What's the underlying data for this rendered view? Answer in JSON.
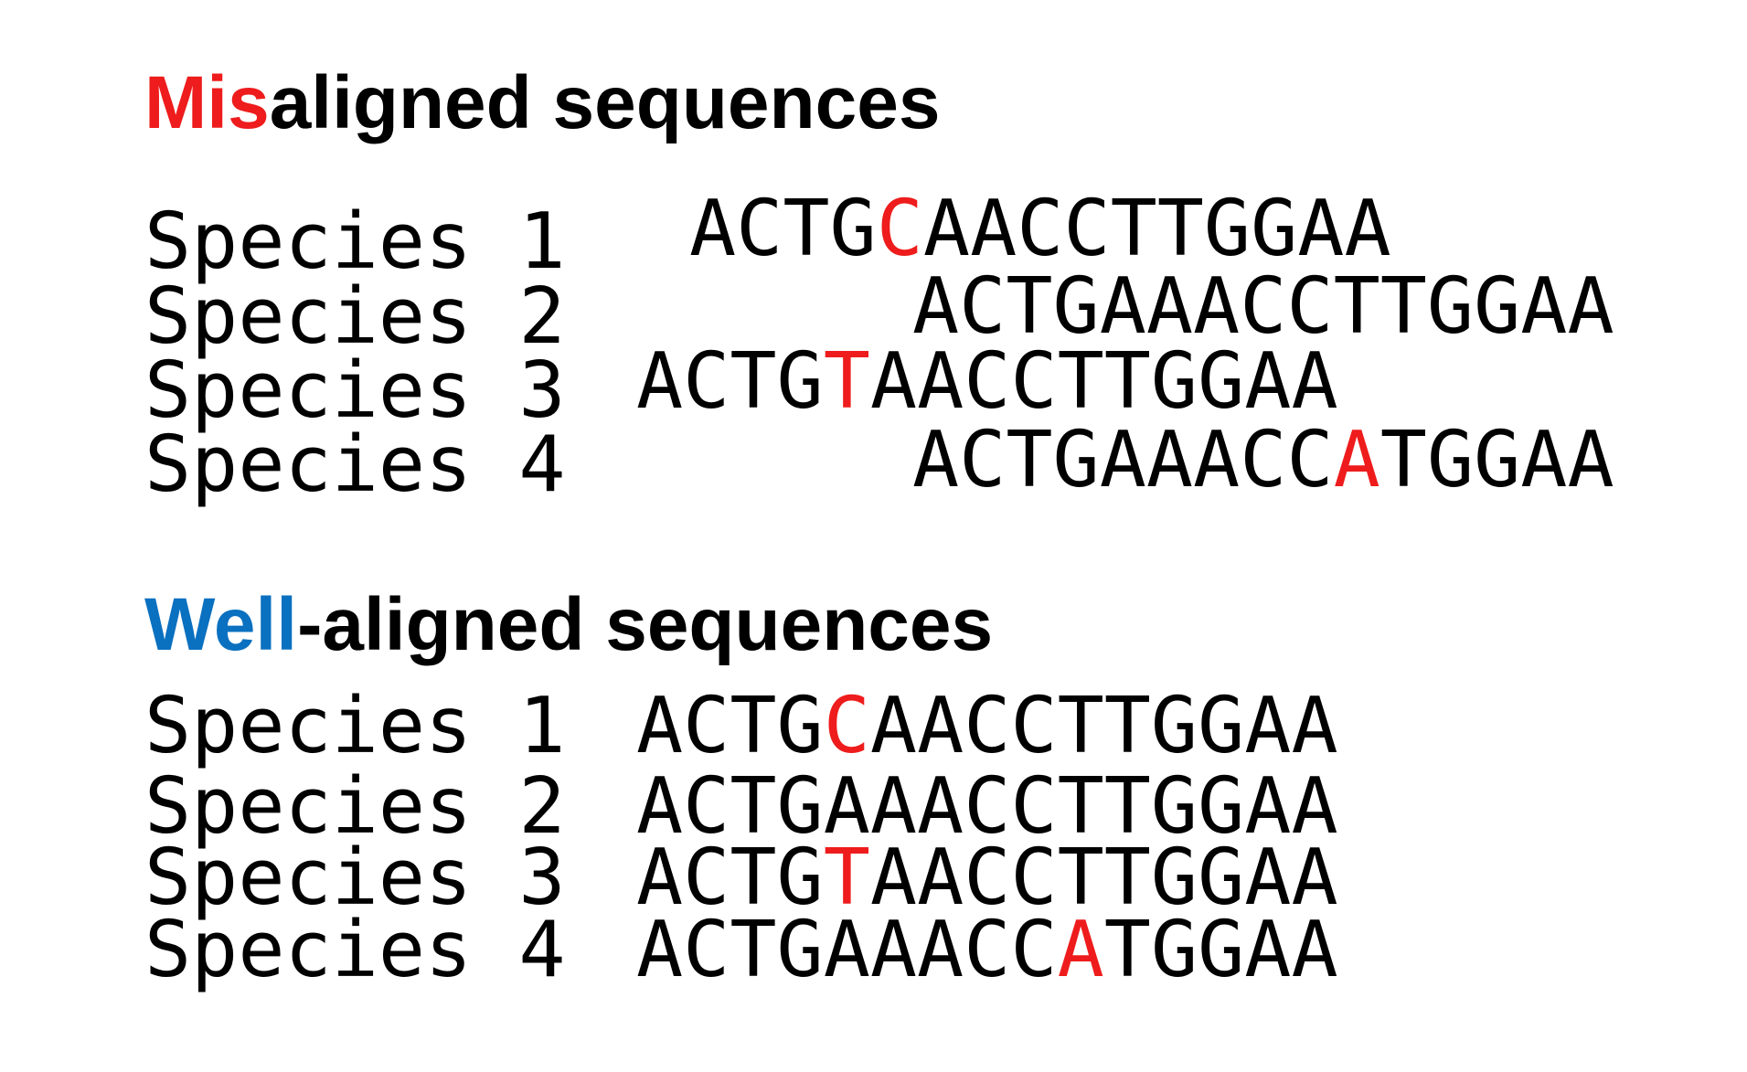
{
  "colors": {
    "text": "#000000",
    "mis_highlight": "#ee1c1c",
    "well_highlight": "#0a70c0",
    "mutation": "#ee1c1c"
  },
  "sections": [
    {
      "id": "misaligned",
      "title_highlight": "Mis",
      "title_rest": "aligned sequences",
      "highlight_color": "#ee1c1c",
      "rows": [
        {
          "label": "Species 1",
          "pre": "ACTG",
          "mut": "C",
          "post": "AACCTTGGAA"
        },
        {
          "label": "Species 2",
          "pre": "ACTGAAACCTTGGAA",
          "mut": "",
          "post": ""
        },
        {
          "label": "Species 3",
          "pre": "ACTG",
          "mut": "T",
          "post": "AACCTTGGAA"
        },
        {
          "label": "Species 4",
          "pre": "ACTGAAACC",
          "mut": "A",
          "post": "TGGAA"
        }
      ]
    },
    {
      "id": "well-aligned",
      "title_highlight": "Well",
      "title_rest": "-aligned sequences",
      "highlight_color": "#0a70c0",
      "rows": [
        {
          "label": "Species 1",
          "pre": "ACTG",
          "mut": "C",
          "post": "AACCTTGGAA"
        },
        {
          "label": "Species 2",
          "pre": "ACTGAAACCTTGGAA",
          "mut": "",
          "post": ""
        },
        {
          "label": "Species 3",
          "pre": "ACTG",
          "mut": "T",
          "post": "AACCTTGGAA"
        },
        {
          "label": "Species 4",
          "pre": "ACTGAAACC",
          "mut": "A",
          "post": "TGGAA"
        }
      ]
    }
  ]
}
